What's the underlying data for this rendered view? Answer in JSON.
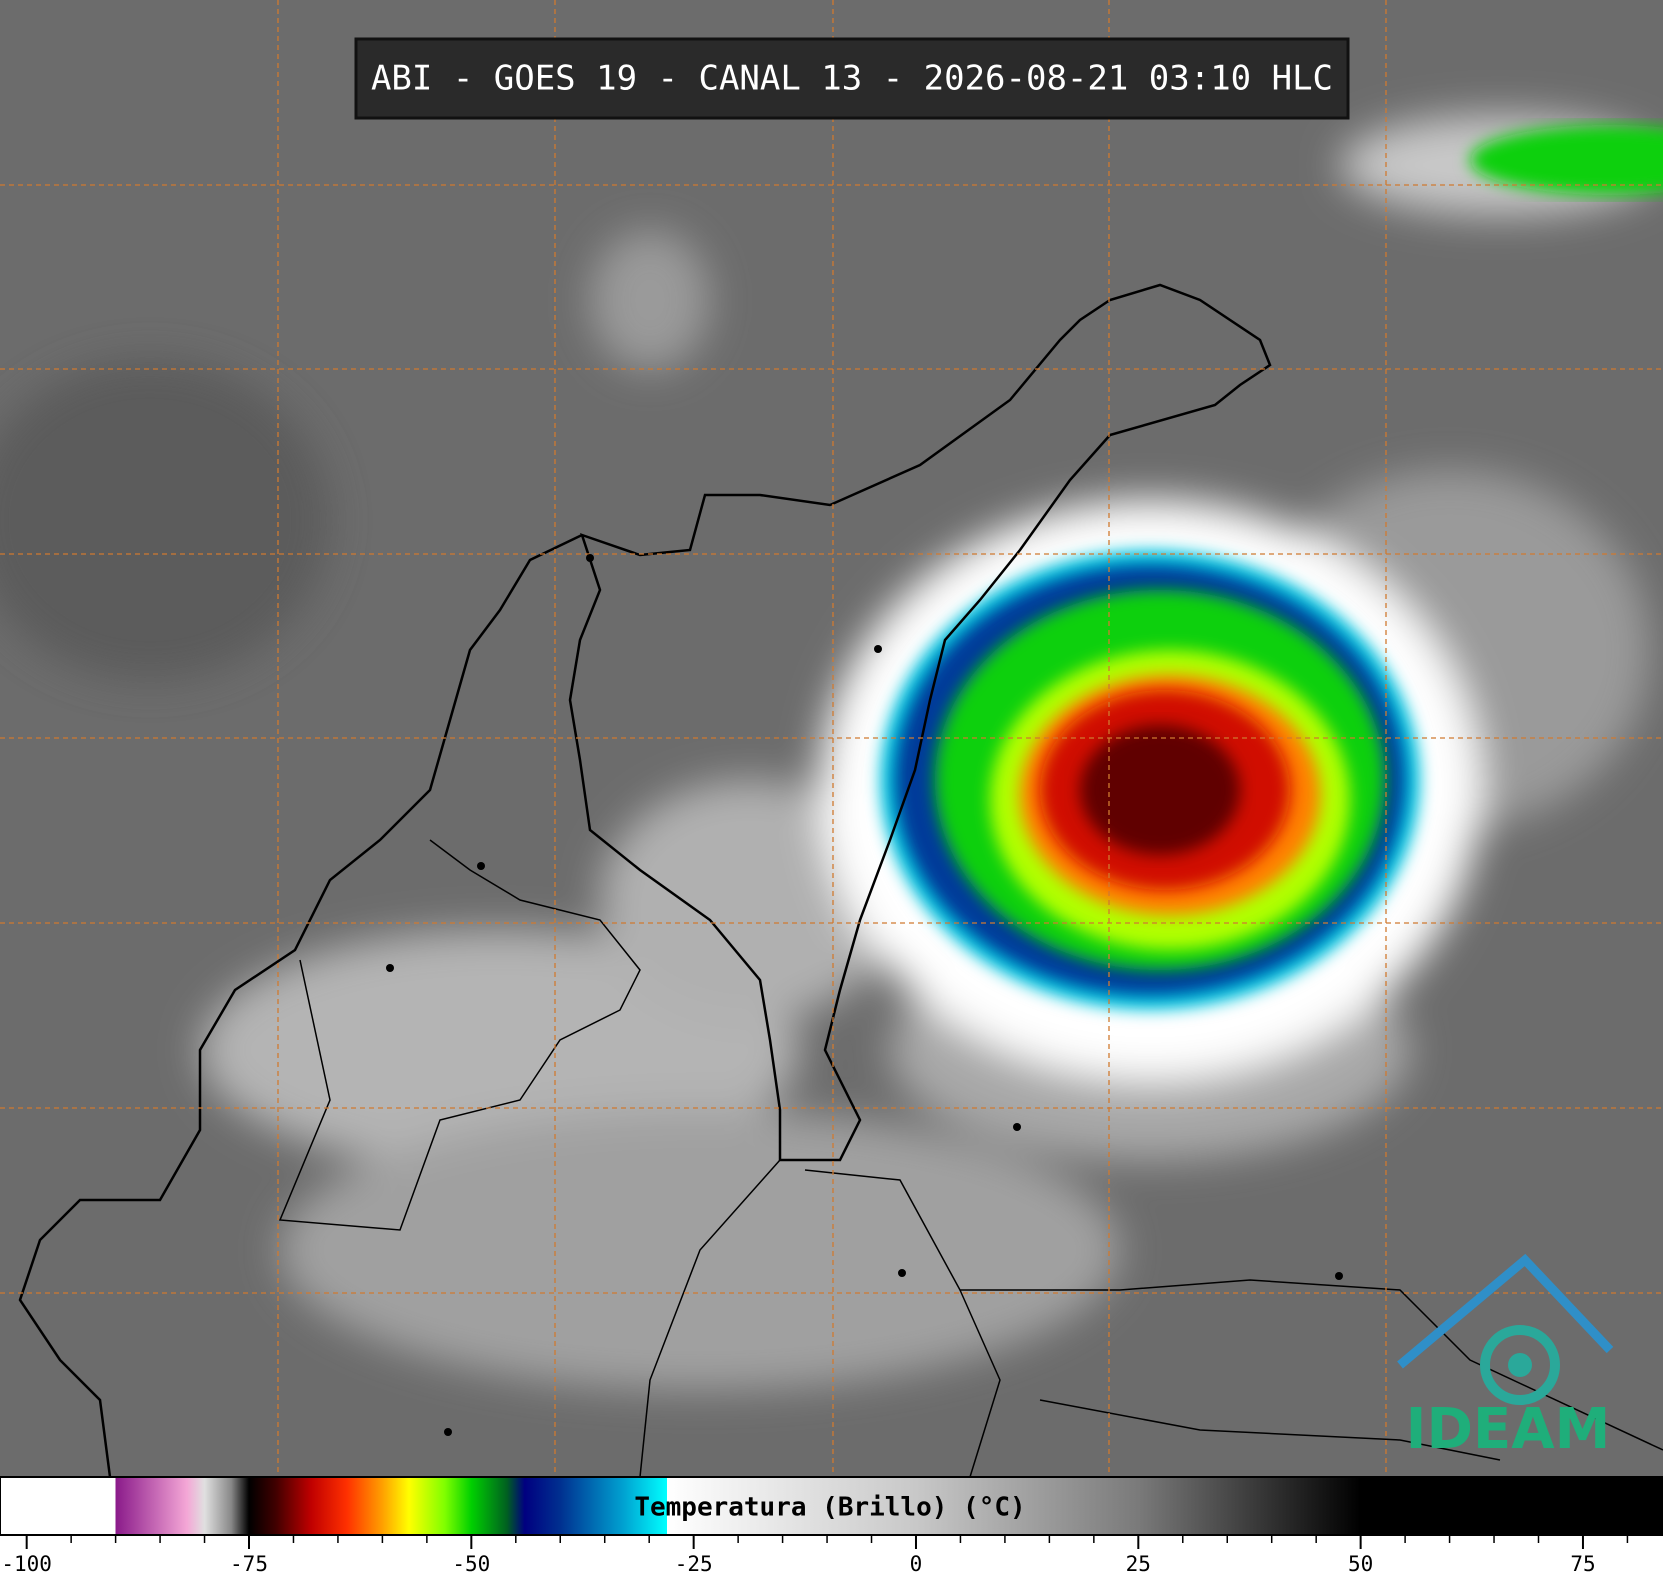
{
  "header": {
    "title": "ABI - GOES 19 - CANAL 13 - 2026-08-21 03:10 HLC"
  },
  "colorbar": {
    "label": "Temperatura (Brillo) (°C)",
    "xlim": [
      -103,
      84
    ],
    "xticks": [
      -100,
      -75,
      -50,
      -25,
      0,
      25,
      50,
      75
    ],
    "minor_xticks": [
      -95,
      -90,
      -85,
      -80,
      -70,
      -65,
      -60,
      -55,
      -45,
      -40,
      -35,
      -30,
      -20,
      -15,
      -10,
      -5,
      5,
      10,
      15,
      20,
      30,
      35,
      40,
      45,
      55,
      60,
      65,
      70,
      80
    ],
    "colors": [
      {
        "value": -103,
        "color": "#ffffff"
      },
      {
        "value": -90,
        "color": "#ffffff"
      },
      {
        "value": -90,
        "color": "#8a1a8a"
      },
      {
        "value": -82,
        "color": "#f4a6d6"
      },
      {
        "value": -80,
        "color": "#e0e0e0"
      },
      {
        "value": -77,
        "color": "#888888"
      },
      {
        "value": -75,
        "color": "#000000"
      },
      {
        "value": -72,
        "color": "#400000"
      },
      {
        "value": -68,
        "color": "#c00000"
      },
      {
        "value": -64,
        "color": "#ff3000"
      },
      {
        "value": -60,
        "color": "#ffa000"
      },
      {
        "value": -57,
        "color": "#ffff00"
      },
      {
        "value": -53,
        "color": "#80ff00"
      },
      {
        "value": -50,
        "color": "#00d000"
      },
      {
        "value": -46,
        "color": "#006020"
      },
      {
        "value": -44,
        "color": "#000080"
      },
      {
        "value": -40,
        "color": "#003090"
      },
      {
        "value": -33,
        "color": "#00a0d0"
      },
      {
        "value": -28,
        "color": "#00ffff"
      },
      {
        "value": -28,
        "color": "#ffffff"
      },
      {
        "value": 0,
        "color": "#c8c8c8"
      },
      {
        "value": 25,
        "color": "#7a7a7a"
      },
      {
        "value": 50,
        "color": "#000000"
      },
      {
        "value": 84,
        "color": "#000000"
      }
    ]
  },
  "logo": {
    "text": "IDEAM"
  }
}
